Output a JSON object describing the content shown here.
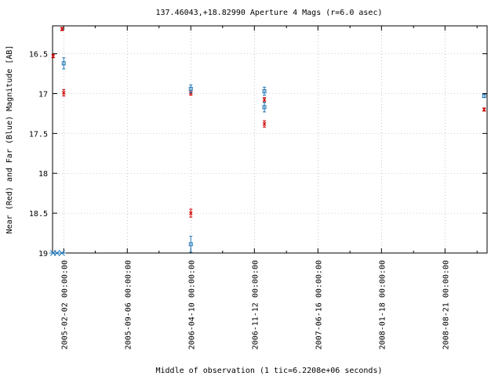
{
  "chart_data": {
    "type": "scatter",
    "title": "137.46043,+18.82990   Aperture 4 Mags (r=6.0 asec)",
    "xlabel": "Middle of observation (1 tic=6.2208e+06 seconds)",
    "ylabel": "Near (Red) and Far (Blue) Magnitude [AB]",
    "y_inverted": true,
    "ylim": [
      19.0,
      16.15
    ],
    "xlim": [
      "2004-12-26",
      "2009-01-11"
    ],
    "y_ticks": [
      {
        "value": 16.5,
        "label": "16.5"
      },
      {
        "value": 17.0,
        "label": "17"
      },
      {
        "value": 17.5,
        "label": "17.5"
      },
      {
        "value": 18.0,
        "label": "18"
      },
      {
        "value": 18.5,
        "label": "18.5"
      },
      {
        "value": 19.0,
        "label": "19"
      }
    ],
    "x_ticks": [
      {
        "value": "2005-02-02",
        "label": "2005-02-02 00:00:00"
      },
      {
        "value": "2005-09-06",
        "label": "2005-09-06 00:00:00"
      },
      {
        "value": "2006-04-10",
        "label": "2006-04-10 00:00:00"
      },
      {
        "value": "2006-11-12",
        "label": "2006-11-12 00:00:00"
      },
      {
        "value": "2007-06-16",
        "label": "2007-06-16 00:00:00"
      },
      {
        "value": "2008-01-18",
        "label": "2008-01-18 00:00:00"
      },
      {
        "value": "2008-08-21",
        "label": "2008-08-21 00:00:00"
      }
    ],
    "minor_x_ticks": [
      "2005-05-20",
      "2005-12-23",
      "2006-07-27",
      "2007-03-01",
      "2007-10-03",
      "2008-05-06",
      "2008-12-08"
    ],
    "series": [
      {
        "color": "#cc0000",
        "marker": "cross",
        "points": [
          {
            "x": "2004-12-28",
            "y": 16.53,
            "err": 0.02
          },
          {
            "x": "2005-01-27",
            "y": 16.19,
            "err": 0.01
          },
          {
            "x": "2005-02-02",
            "y": 16.99,
            "err": 0.04
          },
          {
            "x": "2006-04-10",
            "y": 16.99,
            "err": 0.03
          },
          {
            "x": "2006-04-10",
            "y": 18.5,
            "err": 0.05
          },
          {
            "x": "2006-12-16",
            "y": 17.08,
            "err": 0.03
          },
          {
            "x": "2006-12-16",
            "y": 17.38,
            "err": 0.04
          },
          {
            "x": "2009-01-01",
            "y": 17.2,
            "err": 0.02
          }
        ]
      },
      {
        "color": "#1f77b4",
        "marker": "square",
        "points": [
          {
            "x": "2005-02-02",
            "y": 16.62,
            "err": 0.07
          },
          {
            "x": "2006-04-10",
            "y": 16.94,
            "err": 0.05
          },
          {
            "x": "2006-04-10",
            "y": 18.89,
            "err": 0.1
          },
          {
            "x": "2006-12-16",
            "y": 16.97,
            "err": 0.05
          },
          {
            "x": "2006-12-16",
            "y": 17.17,
            "err": 0.06
          },
          {
            "x": "2009-01-01",
            "y": 17.03,
            "err": 0.02
          }
        ]
      }
    ],
    "limit_markers": {
      "color": "#1f77b4",
      "y": 19.0,
      "x": [
        "2004-12-28",
        "2005-01-10",
        "2005-01-27"
      ]
    }
  }
}
